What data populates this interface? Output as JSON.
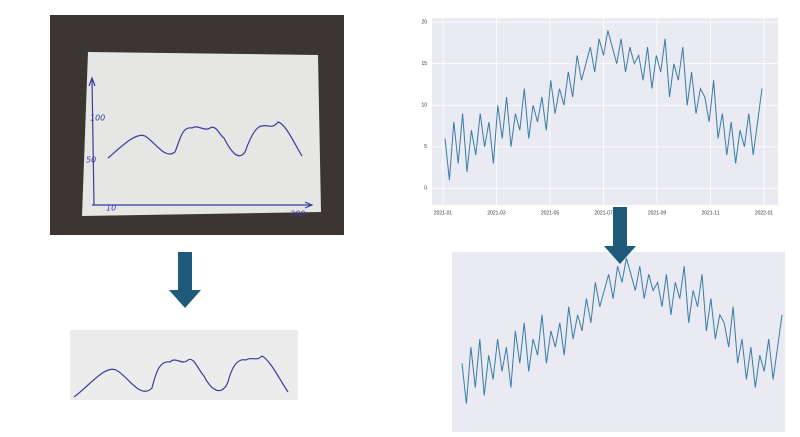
{
  "sketch": {
    "labels": [
      "100",
      "50",
      "10",
      "200"
    ]
  },
  "plot": {
    "ylim": [
      -2,
      20.5
    ],
    "yticks": [
      0,
      5,
      10,
      15,
      20
    ],
    "xticks": [
      "2021-01",
      "2021-03",
      "2021-05",
      "2021-07",
      "2021-09",
      "2021-11",
      "2022-01"
    ],
    "color": "#3a7ca5",
    "values": [
      6,
      1,
      8,
      3,
      9,
      2,
      7,
      4,
      9,
      5,
      8,
      3,
      10,
      6,
      11,
      5,
      9,
      7,
      12,
      6,
      10,
      8,
      11,
      7,
      13,
      9,
      12,
      10,
      14,
      11,
      16,
      13,
      15,
      17,
      14,
      18,
      16,
      19,
      17,
      15,
      18,
      14,
      17,
      15,
      16,
      13,
      17,
      12,
      16,
      14,
      18,
      11,
      15,
      13,
      17,
      10,
      14,
      9,
      12,
      11,
      8,
      13,
      6,
      9,
      4,
      8,
      3,
      7,
      5,
      9,
      4,
      8,
      12
    ]
  }
}
